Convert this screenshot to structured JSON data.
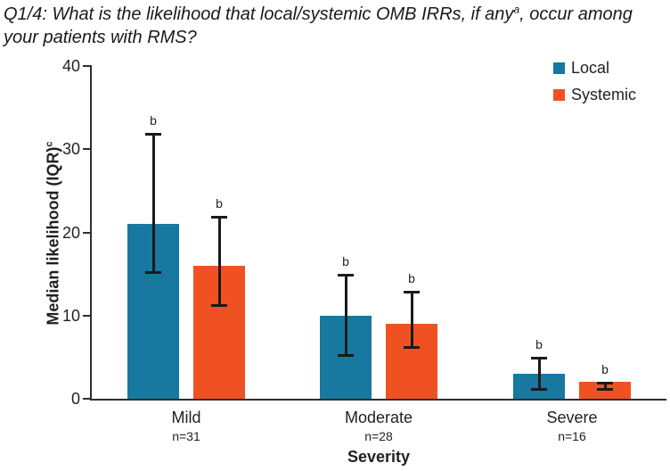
{
  "header": {
    "title_prefix": "Q1/4: What is the likelihood that local/systemic OMB IRRs, if any",
    "title_superscript": "a",
    "title_suffix": ", occur among your patients with RMS?"
  },
  "chart_data": {
    "type": "bar",
    "title": "Q1/4: What is the likelihood that local/systemic OMB IRRs, if any(a), occur among your patients with RMS?",
    "categories": [
      "Mild",
      "Moderate",
      "Severe"
    ],
    "category_n": [
      "n=31",
      "n=28",
      "n=16"
    ],
    "series": [
      {
        "name": "Local",
        "color": "#1778a0",
        "median": [
          21,
          10,
          3
        ],
        "iqr_low": [
          15,
          5,
          1
        ],
        "iqr_high": [
          32,
          15,
          5
        ]
      },
      {
        "name": "Systemic",
        "color": "#f05123",
        "median": [
          16,
          9,
          2
        ],
        "iqr_low": [
          11,
          6,
          1
        ],
        "iqr_high": [
          22,
          13,
          2
        ]
      }
    ],
    "bar_annotation": "b",
    "error_bar_meaning": "IQR",
    "xlabel": "Severity",
    "ylabel": "Median likelihood (IQR)",
    "ylabel_superscript": "c",
    "yticks": [
      0,
      10,
      20,
      30,
      40
    ],
    "ylim": [
      0,
      40
    ],
    "grid": false,
    "legend_position": "top-right"
  }
}
